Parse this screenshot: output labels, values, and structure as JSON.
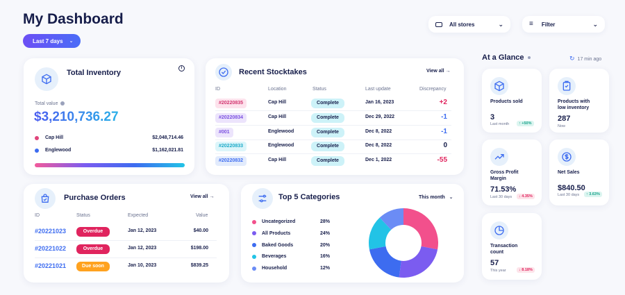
{
  "header": {
    "title": "My Dashboard",
    "date_range": "Last 7 days",
    "stores_select": "All stores",
    "filter_label": "Filter"
  },
  "inventory": {
    "title": "Total Inventory",
    "total_label": "Total value",
    "total_value": "$3,210,736.27",
    "locations": [
      {
        "name": "Cap Hill",
        "value": "$2,048,714.46",
        "color": "#e0457b"
      },
      {
        "name": "Englewood",
        "value": "$1,162,021.81",
        "color": "#3d6cf0"
      }
    ]
  },
  "stocktakes": {
    "title": "Recent Stocktakes",
    "view_all": "View all",
    "columns": [
      "ID",
      "Location",
      "Status",
      "Last update",
      "Discrepancy"
    ],
    "rows": [
      {
        "id": "#20220835",
        "location": "Cap Hill",
        "status": "Complete",
        "updated": "Jan 16, 2023",
        "discrepancy": "+2",
        "id_bg": "#fde2ec",
        "id_fg": "#d2336e",
        "disc_color": "#e0245e"
      },
      {
        "id": "#20220834",
        "location": "Cap Hill",
        "status": "Complete",
        "updated": "Dec 29, 2022",
        "discrepancy": "-1",
        "id_bg": "#ece4fc",
        "id_fg": "#7a4fe0",
        "disc_color": "#3d6cf0"
      },
      {
        "id": "#001",
        "location": "Englewood",
        "status": "Complete",
        "updated": "Dec 8, 2022",
        "discrepancy": "-1",
        "id_bg": "#ece4fc",
        "id_fg": "#7a4fe0",
        "disc_color": "#3d6cf0"
      },
      {
        "id": "#20220833",
        "location": "Englewood",
        "status": "Complete",
        "updated": "Dec 8, 2022",
        "discrepancy": "0",
        "id_bg": "#dcf5fa",
        "id_fg": "#1aa9c7",
        "disc_color": "#161d4a"
      },
      {
        "id": "#20220832",
        "location": "Cap Hill",
        "status": "Complete",
        "updated": "Dec 1, 2022",
        "discrepancy": "-55",
        "id_bg": "#e2ebfc",
        "id_fg": "#3d6cf0",
        "disc_color": "#e0245e"
      }
    ]
  },
  "purchase_orders": {
    "title": "Purchase Orders",
    "view_all": "View all",
    "columns": [
      "ID",
      "Status",
      "Expected",
      "Value"
    ],
    "rows": [
      {
        "id": "#20221023",
        "status": "Overdue",
        "expected": "Jan 12, 2023",
        "value": "$40.00",
        "status_bg": "#e0245e"
      },
      {
        "id": "#20221022",
        "status": "Overdue",
        "expected": "Jan 12, 2023",
        "value": "$198.00",
        "status_bg": "#e0245e"
      },
      {
        "id": "#20221021",
        "status": "Due soon",
        "expected": "Jan 10, 2023",
        "value": "$839.25",
        "status_bg": "#ffa21f"
      }
    ]
  },
  "categories": {
    "title": "Top 5 Categories",
    "period": "This month",
    "items": [
      {
        "name": "Uncategorized",
        "pct": "28%",
        "value": 28,
        "color": "#f2508c"
      },
      {
        "name": "All Products",
        "pct": "24%",
        "value": 24,
        "color": "#7b5cf0"
      },
      {
        "name": "Baked Goods",
        "pct": "20%",
        "value": 20,
        "color": "#3d6cf0"
      },
      {
        "name": "Beverages",
        "pct": "16%",
        "value": 16,
        "color": "#22c3e6"
      },
      {
        "name": "Household",
        "pct": "12%",
        "value": 12,
        "color": "#6b8cf5"
      }
    ]
  },
  "glance": {
    "title": "At a Glance",
    "updated": "17 min ago",
    "cards": [
      {
        "label_line1": "Products sold",
        "label_line2": "",
        "value": "3",
        "sub": "Last month",
        "badge": "+50%",
        "badge_type": "up",
        "icon": "box-icon"
      },
      {
        "label_line1": "Products with",
        "label_line2": "low inventory",
        "value": "287",
        "sub": "Now",
        "badge": "",
        "badge_type": "",
        "icon": "inventory-icon"
      },
      {
        "label_line1": "Gross Profit",
        "label_line2": "Margin",
        "value": "71.53%",
        "sub": "Last 30 days",
        "badge": "4.35%",
        "badge_type": "down",
        "icon": "trend-icon"
      },
      {
        "label_line1": "Net Sales",
        "label_line2": "",
        "value": "$840.50",
        "sub": "Last 30 days",
        "badge": "3.63%",
        "badge_type": "up",
        "icon": "dollar-icon"
      },
      {
        "label_line1": "Transaction",
        "label_line2": "count",
        "value": "57",
        "sub": "This year",
        "badge": "8.18%",
        "badge_type": "down",
        "icon": "pie-icon"
      }
    ]
  },
  "colors": {
    "accent": "#6c4ff5",
    "navy": "#161d4a",
    "complete_bg": "#cdf2f8",
    "up_bg": "#dcf5f0",
    "up_fg": "#17a38a",
    "down_bg": "#fde4ea",
    "down_fg": "#e0245e"
  }
}
